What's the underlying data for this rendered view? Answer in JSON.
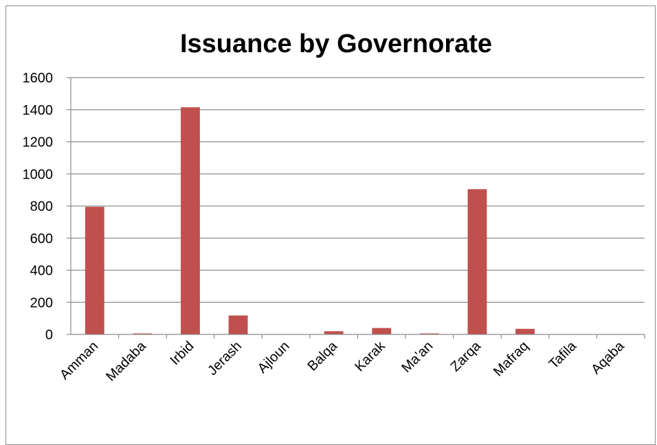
{
  "chart_data": {
    "type": "bar",
    "title": "Issuance by Governorate",
    "xlabel": "",
    "ylabel": "",
    "categories": [
      "Amman",
      "Madaba",
      "Irbid",
      "Jerash",
      "Ajloun",
      "Balqa",
      "Karak",
      "Ma’an",
      "Zarqa",
      "Mafraq",
      "Tafila",
      "Aqaba"
    ],
    "values": [
      795,
      2,
      1415,
      118,
      0,
      20,
      40,
      5,
      905,
      35,
      0,
      0
    ],
    "ylim": [
      0,
      1600
    ],
    "yticks": [
      "0",
      "200",
      "400",
      "600",
      "800",
      "1000",
      "1200",
      "1400",
      "1600"
    ],
    "grid": true,
    "legend": "none",
    "bar_color": "#c0504d",
    "grid_color": "#8c8c8c"
  }
}
